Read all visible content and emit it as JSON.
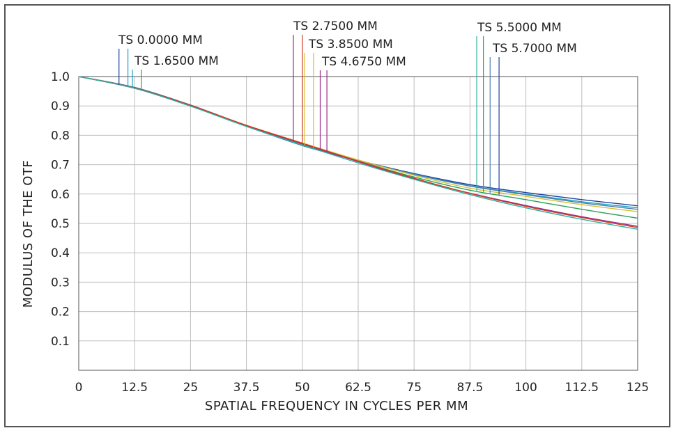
{
  "chart_data": {
    "type": "line",
    "title": "",
    "xlabel": "SPATIAL FREQUENCY IN CYCLES PER MM",
    "ylabel": "MODULUS OF THE OTF",
    "xlim": [
      0,
      125
    ],
    "ylim": [
      0,
      1.0
    ],
    "xticks": [
      "0",
      "12.5",
      "25",
      "37.5",
      "50",
      "62.5",
      "75",
      "87.5",
      "100",
      "112.5",
      "125"
    ],
    "xtick_values": [
      0,
      12.5,
      25,
      37.5,
      50,
      62.5,
      75,
      87.5,
      100,
      112.5,
      125
    ],
    "yticks": [
      "0.1",
      "0.2",
      "0.3",
      "0.4",
      "0.5",
      "0.6",
      "0.7",
      "0.8",
      "0.9",
      "1.0"
    ],
    "ytick_values": [
      0.1,
      0.2,
      0.3,
      0.4,
      0.5,
      0.6,
      0.7,
      0.8,
      0.9,
      1.0
    ],
    "grid": true,
    "x": [
      0,
      12.5,
      25,
      37.5,
      50,
      62.5,
      75,
      87.5,
      100,
      112.5,
      125
    ],
    "series": [
      {
        "name": "",
        "color": "#1f3fa0",
        "values": [
          1.0,
          0.963,
          0.903,
          0.833,
          0.768,
          0.715,
          0.67,
          0.632,
          0.605,
          0.581,
          0.56
        ]
      },
      {
        "name": "",
        "color": "#1aa0c0",
        "values": [
          1.0,
          0.962,
          0.902,
          0.832,
          0.768,
          0.714,
          0.668,
          0.628,
          0.6,
          0.574,
          0.553
        ]
      },
      {
        "name": "",
        "color": "#4a7fb0",
        "values": [
          1.0,
          0.962,
          0.901,
          0.831,
          0.765,
          0.713,
          0.667,
          0.627,
          0.598,
          0.57,
          0.548
        ]
      },
      {
        "name": "",
        "color": "#d6c030",
        "values": [
          1.0,
          0.961,
          0.902,
          0.834,
          0.774,
          0.716,
          0.664,
          0.62,
          0.592,
          0.564,
          0.54
        ]
      },
      {
        "name": "",
        "color": "#2aa05a",
        "values": [
          1.0,
          0.961,
          0.901,
          0.832,
          0.77,
          0.712,
          0.658,
          0.613,
          0.581,
          0.548,
          0.518
        ]
      },
      {
        "name": "",
        "color": "#9a2a8a",
        "values": [
          1.0,
          0.96,
          0.9,
          0.832,
          0.771,
          0.71,
          0.652,
          0.603,
          0.561,
          0.523,
          0.49
        ]
      },
      {
        "name": "",
        "color": "#d03a20",
        "values": [
          1.0,
          0.961,
          0.902,
          0.834,
          0.773,
          0.712,
          0.654,
          0.602,
          0.558,
          0.52,
          0.486
        ]
      },
      {
        "name": "",
        "color": "#30b0a0",
        "values": [
          1.0,
          0.96,
          0.899,
          0.83,
          0.767,
          0.706,
          0.65,
          0.598,
          0.553,
          0.514,
          0.48
        ]
      }
    ],
    "annotations": [
      {
        "text": "TS 0.0000 MM",
        "marker_x": [
          9,
          11
        ],
        "marker_colors": [
          "#1f3fa0",
          "#1aa0c0"
        ]
      },
      {
        "text": "TS 1.6500 MM",
        "marker_x": [
          12,
          14
        ],
        "marker_colors": [
          "#1aa0c0",
          "#2aa05a"
        ]
      },
      {
        "text": "TS 2.7500 MM",
        "marker_x": [
          48,
          50
        ],
        "marker_colors": [
          "#9a2a8a",
          "#d03a20"
        ]
      },
      {
        "text": "TS 3.8500 MM",
        "marker_x": [
          50.5,
          52.5
        ],
        "marker_colors": [
          "#d6c030",
          "#d6c030"
        ]
      },
      {
        "text": "TS 4.6750 MM",
        "marker_x": [
          54,
          55.5
        ],
        "marker_colors": [
          "#9a2a8a",
          "#9a2a8a"
        ]
      },
      {
        "text": "TS 5.5000 MM",
        "marker_x": [
          89,
          90.5
        ],
        "marker_colors": [
          "#30b0a0",
          "#2aa05a"
        ]
      },
      {
        "text": "TS 5.7000 MM",
        "marker_x": [
          92,
          94
        ],
        "marker_colors": [
          "#4a7fb0",
          "#1f3fa0"
        ]
      }
    ]
  }
}
